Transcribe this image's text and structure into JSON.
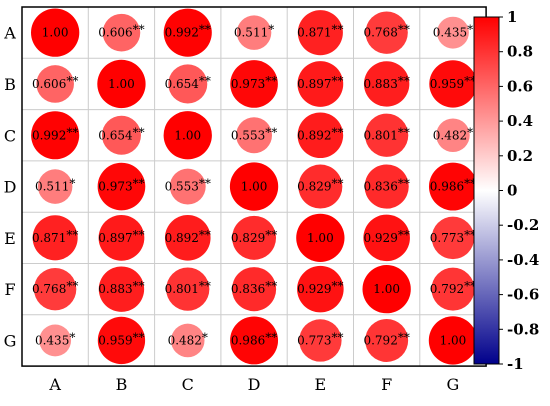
{
  "chart_data": {
    "type": "heatmap",
    "variables": [
      "A",
      "B",
      "C",
      "D",
      "E",
      "F",
      "G"
    ],
    "values": [
      [
        1.0,
        0.606,
        0.992,
        0.511,
        0.871,
        0.768,
        0.435
      ],
      [
        0.606,
        1.0,
        0.654,
        0.973,
        0.897,
        0.883,
        0.959
      ],
      [
        0.992,
        0.654,
        1.0,
        0.553,
        0.892,
        0.801,
        0.482
      ],
      [
        0.511,
        0.973,
        0.553,
        1.0,
        0.829,
        0.836,
        0.986
      ],
      [
        0.871,
        0.897,
        0.892,
        0.829,
        1.0,
        0.929,
        0.773
      ],
      [
        0.768,
        0.883,
        0.801,
        0.836,
        0.929,
        1.0,
        0.792
      ],
      [
        0.435,
        0.959,
        0.482,
        0.986,
        0.773,
        0.792,
        1.0
      ]
    ],
    "labels": [
      [
        "1.00",
        "0.606",
        "0.992",
        "0.511",
        "0.871",
        "0.768",
        "0.435"
      ],
      [
        "0.606",
        "1.00",
        "0.654",
        "0.973",
        "0.897",
        "0.883",
        "0.959"
      ],
      [
        "0.992",
        "0.654",
        "1.00",
        "0.553",
        "0.892",
        "0.801",
        "0.482"
      ],
      [
        "0.511",
        "0.973",
        "0.553",
        "1.00",
        "0.829",
        "0.836",
        "0.986"
      ],
      [
        "0.871",
        "0.897",
        "0.892",
        "0.829",
        "1.00",
        "0.929",
        "0.773"
      ],
      [
        "0.768",
        "0.883",
        "0.801",
        "0.836",
        "0.929",
        "1.00",
        "0.792"
      ],
      [
        "0.435",
        "0.959",
        "0.482",
        "0.986",
        "0.773",
        "0.792",
        "1.00"
      ]
    ],
    "significance": [
      [
        "",
        "**",
        "**",
        "*",
        "**",
        "**",
        "*"
      ],
      [
        "**",
        "",
        "**",
        "**",
        "**",
        "**",
        "**"
      ],
      [
        "**",
        "**",
        "",
        "**",
        "**",
        "**",
        "*"
      ],
      [
        "*",
        "**",
        "**",
        "",
        "**",
        "**",
        "**"
      ],
      [
        "**",
        "**",
        "**",
        "**",
        "",
        "**",
        "**"
      ],
      [
        "**",
        "**",
        "**",
        "**",
        "**",
        "",
        "**"
      ],
      [
        "*",
        "**",
        "*",
        "**",
        "**",
        "**",
        ""
      ]
    ],
    "colorbar": {
      "range": [
        -1,
        1
      ],
      "ticks": [
        "1",
        "0.8",
        "0.6",
        "0.4",
        "0.2",
        "0",
        "-0.2",
        "-0.4",
        "-0.6",
        "-0.8",
        "-1"
      ],
      "colors": {
        "low": "#00008b",
        "mid": "#ffffff",
        "high": "#ff0000"
      }
    },
    "grid": true
  }
}
